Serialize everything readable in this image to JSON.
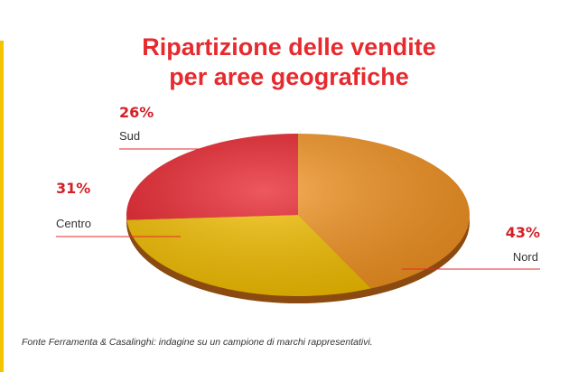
{
  "chart_data": {
    "type": "pie",
    "title": "Ripartizione delle vendite per aree geografiche",
    "categories": [
      "Nord",
      "Centro",
      "Sud"
    ],
    "values": [
      43,
      31,
      26
    ],
    "value_labels": [
      "43%",
      "31%",
      "26%"
    ],
    "colors": [
      "#f39321",
      "#f5c000",
      "#e8202a"
    ],
    "source": "Fonte Ferramenta & Casalinghi: indagine su un campione di marchi rappresentativi."
  }
}
